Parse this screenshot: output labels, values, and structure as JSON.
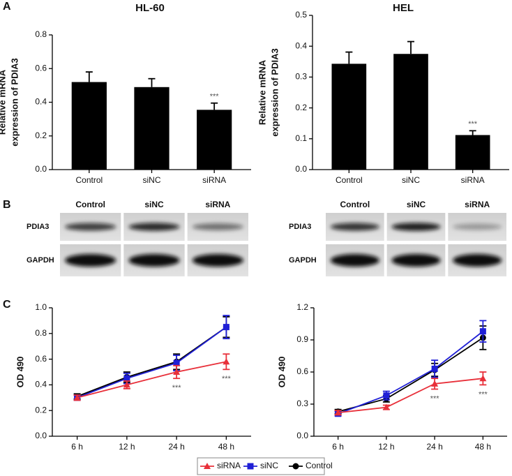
{
  "panels": [
    "A",
    "B",
    "C"
  ],
  "blots": [
    {
      "columns": [
        "Control",
        "siNC",
        "siRNA"
      ],
      "rows": [
        "PDIA3",
        "GAPDH"
      ]
    },
    {
      "columns": [
        "Control",
        "siNC",
        "siRNA"
      ],
      "rows": [
        "PDIA3",
        "GAPDH"
      ]
    }
  ],
  "chart_data": [
    {
      "type": "bar",
      "title": "HL-60",
      "ylabel": [
        "Relative mRNA",
        "expression of PDIA3"
      ],
      "categories": [
        "Control",
        "siNC",
        "siRNA"
      ],
      "values": [
        0.52,
        0.49,
        0.355
      ],
      "errors": [
        0.06,
        0.05,
        0.04
      ],
      "annotations": [
        null,
        null,
        "***"
      ],
      "color": "#000000",
      "ylim": [
        0,
        0.8
      ],
      "yticks": [
        {
          "value": 0,
          "label": "0.0"
        },
        0.2,
        0.4,
        0.6,
        0.8
      ],
      "grid": false
    },
    {
      "type": "bar",
      "title": "HEL",
      "ylabel": [
        "Relative mRNA",
        "expression of PDIA3"
      ],
      "categories": [
        "Control",
        "siNC",
        "siRNA"
      ],
      "values": [
        0.343,
        0.375,
        0.112
      ],
      "errors": [
        0.038,
        0.04,
        0.014
      ],
      "annotations": [
        null,
        null,
        "***"
      ],
      "color": "#000000",
      "ylim": [
        0,
        0.5
      ],
      "yticks": [
        {
          "value": 0,
          "label": "0.0"
        },
        0.1,
        0.2,
        0.3,
        0.4,
        0.5
      ],
      "grid": false
    },
    {
      "type": "line",
      "ylabel": "OD 490",
      "categories": [
        "6 h",
        "12 h",
        "24 h",
        "48 h"
      ],
      "ylim": [
        0,
        1.0
      ],
      "yticks": [
        {
          "value": 0,
          "label": "0.0"
        },
        0.2,
        0.4,
        0.6,
        0.8,
        {
          "value": 1.0,
          "label": "1.0"
        }
      ],
      "grid": false,
      "series": [
        {
          "name": "siRNA",
          "color": "#e8303a",
          "marker": "triangle",
          "values": [
            0.3,
            0.4,
            0.5,
            0.58
          ],
          "errors": [
            0.02,
            0.03,
            0.05,
            0.06
          ],
          "annotations": [
            null,
            null,
            "***",
            "***"
          ]
        },
        {
          "name": "siNC",
          "color": "#1f1fd6",
          "marker": "square",
          "values": [
            0.3,
            0.45,
            0.57,
            0.85
          ],
          "errors": [
            0.02,
            0.04,
            0.06,
            0.09
          ]
        },
        {
          "name": "Control",
          "color": "#000000",
          "marker": "circle",
          "values": [
            0.31,
            0.46,
            0.58,
            0.85
          ],
          "errors": [
            0.02,
            0.04,
            0.06,
            0.08
          ]
        }
      ]
    },
    {
      "type": "line",
      "ylabel": "OD 490",
      "categories": [
        "6 h",
        "12 h",
        "24 h",
        "48 h"
      ],
      "ylim": [
        0,
        1.2
      ],
      "yticks": [
        {
          "value": 0,
          "label": "0.0"
        },
        0.3,
        0.6,
        0.9,
        1.2
      ],
      "grid": false,
      "series": [
        {
          "name": "siRNA",
          "color": "#e8303a",
          "marker": "triangle",
          "values": [
            0.22,
            0.27,
            0.49,
            0.54
          ],
          "errors": [
            0.02,
            0.02,
            0.05,
            0.06
          ],
          "annotations": [
            null,
            null,
            "***",
            "***"
          ]
        },
        {
          "name": "siNC",
          "color": "#1f1fd6",
          "marker": "square",
          "values": [
            0.21,
            0.38,
            0.63,
            0.98
          ],
          "errors": [
            0.02,
            0.04,
            0.08,
            0.1
          ]
        },
        {
          "name": "Control",
          "color": "#000000",
          "marker": "circle",
          "values": [
            0.23,
            0.35,
            0.62,
            0.92
          ],
          "errors": [
            0.02,
            0.03,
            0.06,
            0.11
          ]
        }
      ]
    }
  ]
}
